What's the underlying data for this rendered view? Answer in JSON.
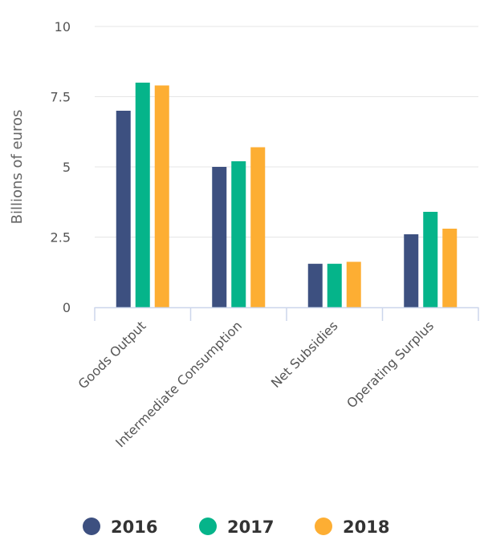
{
  "chart_data": {
    "type": "bar",
    "title": "",
    "xlabel": "",
    "ylabel": "Billions of euros",
    "categories": [
      "Goods Output",
      "Intermediate Consumption",
      "Net Subsidies",
      "Operating Surplus"
    ],
    "series": [
      {
        "name": "2016",
        "color": "#3d5080",
        "values": [
          7.0,
          5.0,
          1.55,
          2.6
        ]
      },
      {
        "name": "2017",
        "color": "#05b48a",
        "values": [
          8.0,
          5.2,
          1.55,
          3.4
        ]
      },
      {
        "name": "2018",
        "color": "#fdae33",
        "values": [
          7.9,
          5.7,
          1.62,
          2.8
        ]
      }
    ],
    "ylim": [
      0,
      10
    ],
    "yticks": [
      0,
      2.5,
      5,
      7.5,
      10
    ],
    "ytick_labels": [
      "0",
      "2.5",
      "5",
      "7.5",
      "10"
    ],
    "grid": true,
    "legend_position": "bottom"
  }
}
